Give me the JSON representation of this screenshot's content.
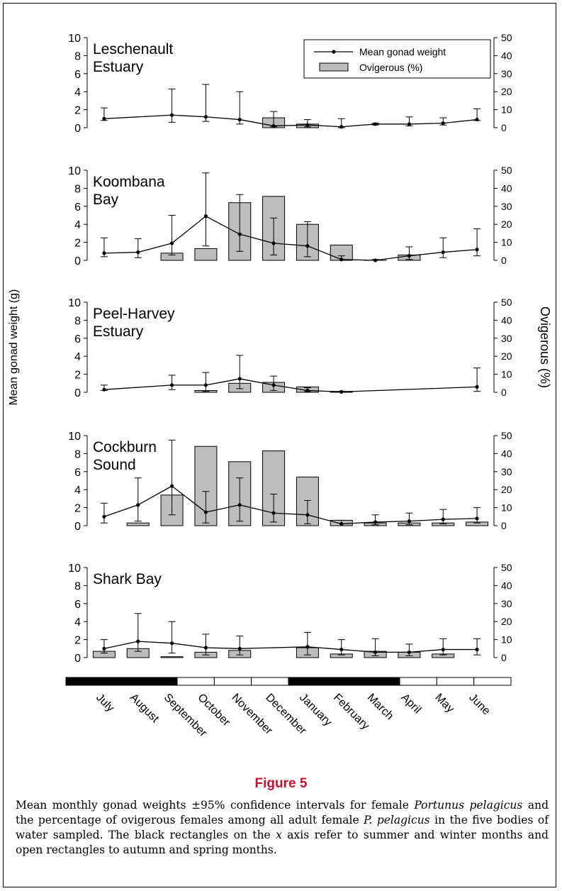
{
  "figure": {
    "label": "Figure 5",
    "caption_parts": [
      "Mean monthly gonad weights ±95% confidence intervals for female ",
      "Portunus pelagicus",
      " and the percentage of ovigerous females among all adult female ",
      "P. pelagicus",
      " in the five bodies of water sampled. The black rectangles on the ",
      "x",
      " axis refer to summer and winter months and open rectangles to autumn and spring months."
    ]
  },
  "chart_data": {
    "type": "bar+line",
    "ylabel_left": "Mean gonad weight (g)",
    "ylabel_right": "Ovigerous (%)",
    "ylim_left": [
      0,
      10
    ],
    "ylim_right": [
      0,
      50
    ],
    "yticks_left": [
      0,
      2,
      4,
      6,
      8,
      10
    ],
    "yticks_right": [
      0,
      10,
      20,
      30,
      40,
      50
    ],
    "months": [
      "July",
      "August",
      "September",
      "October",
      "November",
      "December",
      "January",
      "February",
      "March",
      "April",
      "May",
      "June"
    ],
    "season_bar": [
      "black",
      "black",
      "black",
      "open",
      "open",
      "open",
      "black",
      "black",
      "black",
      "open",
      "open",
      "open"
    ],
    "legend": {
      "line": "Mean gonad weight",
      "bar": "Ovigerous (%)",
      "placement": "top-right of first panel"
    },
    "panels": [
      {
        "title": [
          "Leschenault",
          "Estuary"
        ],
        "ovigerous_pct": [
          null,
          null,
          null,
          null,
          null,
          5.5,
          2,
          null,
          null,
          null,
          null,
          null
        ],
        "gonad_mean": [
          1.0,
          null,
          1.4,
          1.2,
          0.9,
          0.2,
          0.3,
          0.1,
          0.4,
          0.4,
          0.5,
          0.9
        ],
        "gonad_ci_low": [
          0.8,
          null,
          0.6,
          0.7,
          0.4,
          0.1,
          0.1,
          0.0,
          0.3,
          0.2,
          0.3,
          0.8
        ],
        "gonad_ci_high": [
          2.2,
          null,
          4.3,
          4.8,
          4.0,
          1.8,
          0.9,
          1.0,
          0.5,
          1.2,
          1.1,
          2.1
        ]
      },
      {
        "title": [
          "Koombana",
          "Bay"
        ],
        "ovigerous_pct": [
          null,
          null,
          4,
          6.5,
          32,
          35.5,
          20,
          8.5,
          0,
          3,
          null,
          null
        ],
        "gonad_mean": [
          0.8,
          0.9,
          1.9,
          4.9,
          2.9,
          1.9,
          1.6,
          0.1,
          0.0,
          0.5,
          0.9,
          1.2
        ],
        "gonad_ci_low": [
          0.4,
          0.3,
          0.6,
          1.6,
          1.0,
          0.6,
          0.4,
          0.0,
          0.0,
          0.1,
          0.3,
          0.5
        ],
        "gonad_ci_high": [
          2.5,
          2.4,
          5.0,
          9.7,
          7.3,
          4.7,
          4.3,
          0.5,
          0.1,
          1.5,
          2.5,
          3.5
        ]
      },
      {
        "title": [
          "Peel-Harvey",
          "Estuary"
        ],
        "ovigerous_pct": [
          null,
          null,
          null,
          1,
          5,
          5.5,
          3,
          0.5,
          null,
          null,
          null,
          null
        ],
        "gonad_mean": [
          0.3,
          null,
          0.8,
          0.8,
          1.5,
          0.8,
          0.2,
          0.05,
          null,
          null,
          null,
          0.6
        ],
        "gonad_ci_low": [
          0.2,
          null,
          0.3,
          0.1,
          0.4,
          0.2,
          0.1,
          0.0,
          null,
          null,
          null,
          0.1
        ],
        "gonad_ci_high": [
          0.8,
          null,
          1.9,
          2.2,
          4.1,
          1.8,
          0.5,
          0.1,
          null,
          null,
          null,
          2.7
        ]
      },
      {
        "title": [
          "Cockburn",
          "Sound"
        ],
        "ovigerous_pct": [
          null,
          1.5,
          17,
          44,
          35.5,
          41.5,
          27,
          3,
          1.5,
          1.5,
          1.5,
          2
        ],
        "gonad_mean": [
          1.0,
          2.3,
          4.4,
          1.5,
          2.3,
          1.4,
          1.2,
          0.2,
          0.4,
          0.5,
          0.7,
          0.8
        ],
        "gonad_ci_low": [
          0.3,
          0.5,
          1.2,
          0.3,
          0.5,
          0.4,
          0.2,
          0.0,
          0.1,
          0.1,
          0.2,
          0.3
        ],
        "gonad_ci_high": [
          2.5,
          5.3,
          9.5,
          3.8,
          5.3,
          3.5,
          2.8,
          0.6,
          1.2,
          1.4,
          1.8,
          2.0
        ]
      },
      {
        "title": [
          "Shark Bay"
        ],
        "ovigerous_pct": [
          3.5,
          5,
          0.5,
          3,
          4,
          null,
          5.5,
          2,
          3.5,
          3,
          2,
          null
        ],
        "gonad_mean": [
          1.0,
          1.8,
          1.6,
          1.1,
          1.0,
          null,
          1.2,
          0.9,
          0.6,
          0.6,
          0.9,
          0.9
        ],
        "gonad_ci_low": [
          0.5,
          0.7,
          0.5,
          0.3,
          0.3,
          null,
          0.3,
          0.3,
          0.2,
          0.2,
          0.3,
          0.3
        ],
        "gonad_ci_high": [
          2.0,
          4.9,
          4.0,
          2.6,
          2.4,
          null,
          2.8,
          2.0,
          2.1,
          1.5,
          2.1,
          2.1
        ]
      }
    ]
  }
}
